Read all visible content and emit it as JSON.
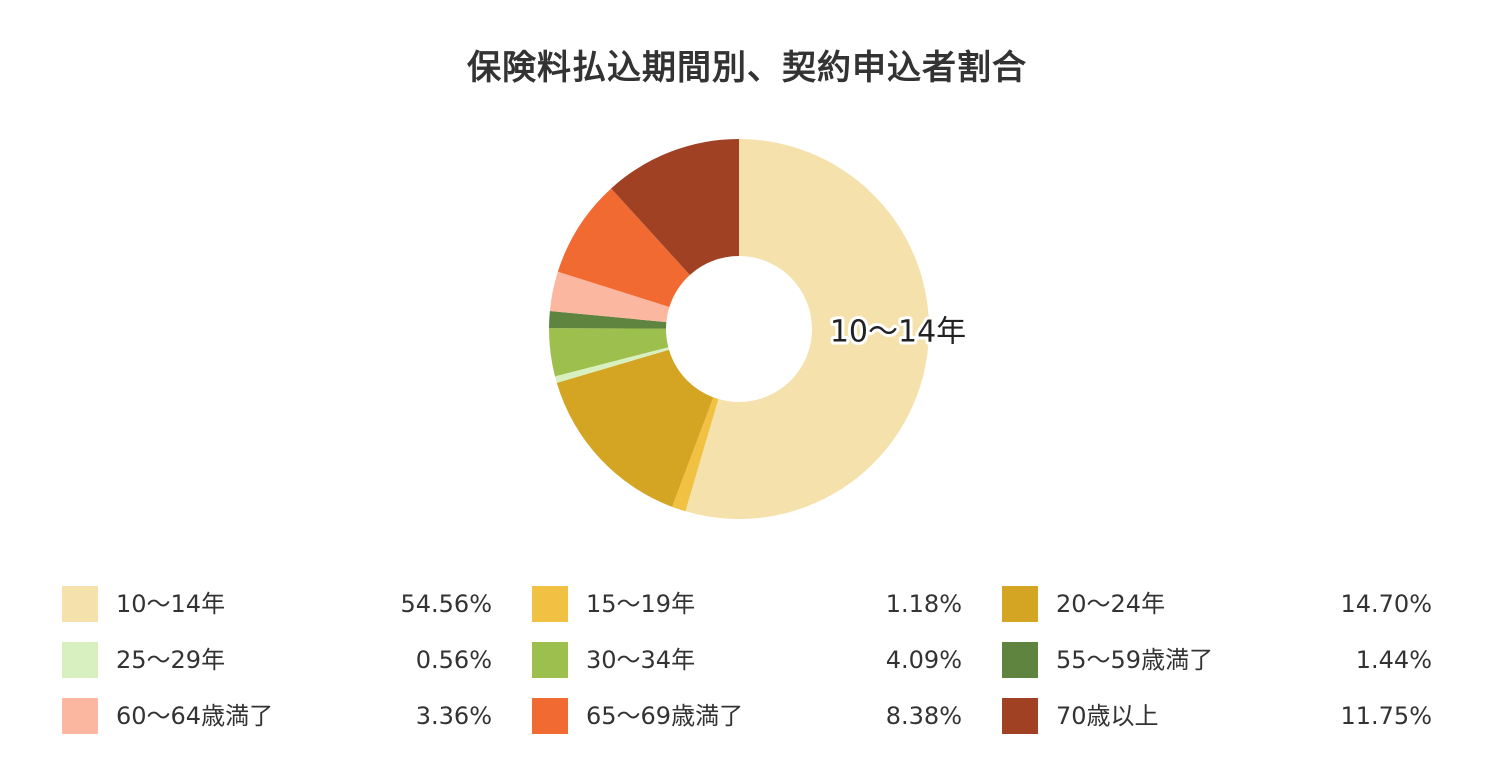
{
  "chart_data": {
    "type": "pie",
    "style": "donut",
    "title": "保険料払込期間別、契約申込者割合",
    "categories": [
      "10～14年",
      "15～19年",
      "20～24年",
      "25～29年",
      "30～34年",
      "55～59歳満了",
      "60～64歳満了",
      "65～69歳満了",
      "70歳以上"
    ],
    "values": [
      54.56,
      1.18,
      14.7,
      0.56,
      4.09,
      1.44,
      3.36,
      8.38,
      11.75
    ],
    "value_labels": [
      "54.56%",
      "1.18%",
      "14.70%",
      "0.56%",
      "4.09%",
      "1.44%",
      "3.36%",
      "8.38%",
      "11.75%"
    ],
    "colors": [
      "#f5e1ab",
      "#f0c142",
      "#d4a522",
      "#d8f0c0",
      "#9cbf4d",
      "#5f8440",
      "#fcb7a0",
      "#f16a32",
      "#a04123"
    ],
    "slice_label": "10～14年",
    "legend_position": "bottom"
  }
}
